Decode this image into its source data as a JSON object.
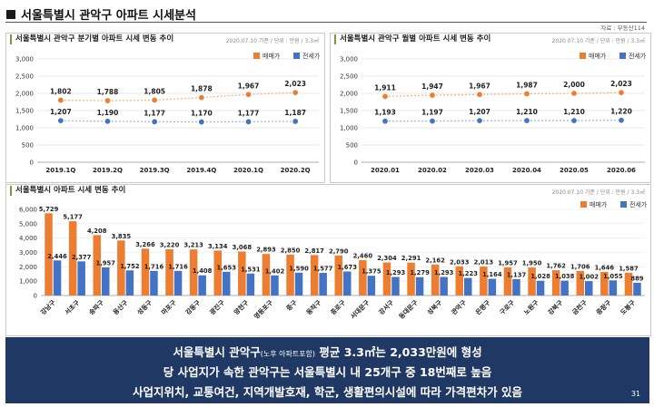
{
  "header": {
    "title": "서울특별시 관악구 아파트 시세분석",
    "source": "자료 : 부동산114"
  },
  "legend": {
    "sale": "매매가",
    "jeonse": "전세가"
  },
  "colors": {
    "sale": "#ed7d31",
    "jeonse": "#4472c4",
    "banner": "#203864"
  },
  "chart_data": [
    {
      "type": "line",
      "title": "서울특별시 관악구 분기별 아파트 시세 변동 추이",
      "note": "2020.07.10 기준 / 단위 : 만원 / 3.3㎡",
      "categories": [
        "2019.1Q",
        "2019.2Q",
        "2019.3Q",
        "2019.4Q",
        "2020.1Q",
        "2020.2Q"
      ],
      "series": [
        {
          "name": "매매가",
          "values": [
            1802,
            1788,
            1805,
            1878,
            1967,
            2023
          ]
        },
        {
          "name": "전세가",
          "values": [
            1207,
            1190,
            1177,
            1170,
            1177,
            1187
          ]
        }
      ],
      "ylim": [
        0,
        3000
      ],
      "yticks": [
        "0",
        "500",
        "1,000",
        "1,500",
        "2,000",
        "2,500",
        "3,000"
      ]
    },
    {
      "type": "line",
      "title": "서울특별시 관악구 월별 아파트 시세 변동 추이",
      "note": "2020.07.10 기준 / 단위 : 만원 / 3.3㎡",
      "categories": [
        "2020.01",
        "2020.02",
        "2020.03",
        "2020.04",
        "2020.05",
        "2020.06"
      ],
      "series": [
        {
          "name": "매매가",
          "values": [
            1911,
            1947,
            1967,
            1987,
            2000,
            2023
          ]
        },
        {
          "name": "전세가",
          "values": [
            1193,
            1197,
            1207,
            1210,
            1210,
            1220
          ]
        }
      ],
      "ylim": [
        0,
        3000
      ],
      "yticks": [
        "0",
        "500",
        "1,000",
        "1,500",
        "2,000",
        "2,500",
        "3,000"
      ]
    },
    {
      "type": "bar",
      "title": "서울특별시 아파트 시세 변동 추이",
      "note": "2020.07.10 기준 / 단위 : 만원 / 3.3㎡",
      "categories": [
        "강남구",
        "서초구",
        "송파구",
        "용산구",
        "성동구",
        "마포구",
        "강동구",
        "광진구",
        "양천구",
        "영등포구",
        "중구",
        "동작구",
        "종로구",
        "서대문구",
        "강서구",
        "동대문구",
        "성북구",
        "관악구",
        "은평구",
        "구로구",
        "노원구",
        "강북구",
        "금천구",
        "중랑구",
        "도봉구"
      ],
      "series": [
        {
          "name": "매매가",
          "values": [
            5729,
            5177,
            4208,
            3835,
            3266,
            3220,
            3213,
            3134,
            3068,
            2893,
            2850,
            2817,
            2790,
            2460,
            2304,
            2291,
            2162,
            2033,
            2013,
            1957,
            1950,
            1762,
            1706,
            1646,
            1587
          ]
        },
        {
          "name": "전세가",
          "values": [
            2446,
            2377,
            1957,
            1752,
            1716,
            1716,
            1408,
            1653,
            1531,
            1402,
            1590,
            1577,
            1673,
            1375,
            1293,
            1279,
            1293,
            1223,
            1164,
            1137,
            1028,
            1038,
            1002,
            1055,
            889
          ]
        }
      ],
      "ylim": [
        0,
        6000
      ],
      "yticks": [
        "0",
        "1,000",
        "2,000",
        "3,000",
        "4,000",
        "5,000",
        "6,000"
      ]
    }
  ],
  "banner": {
    "line1_a": "서울특별시 관악구",
    "line1_small": "(노후 아파트포함)",
    "line1_b": " 평균 3.3㎡는 2,033만원에 형성",
    "line2": "당 사업지가 속한 관악구는 서울특별시 내 25개구 중 18번째로 높음",
    "line3": "사업지위치, 교통여건, 지역개발호재, 학군, 생활편의시설에 따라 가격편차가 있음",
    "page": "31"
  }
}
